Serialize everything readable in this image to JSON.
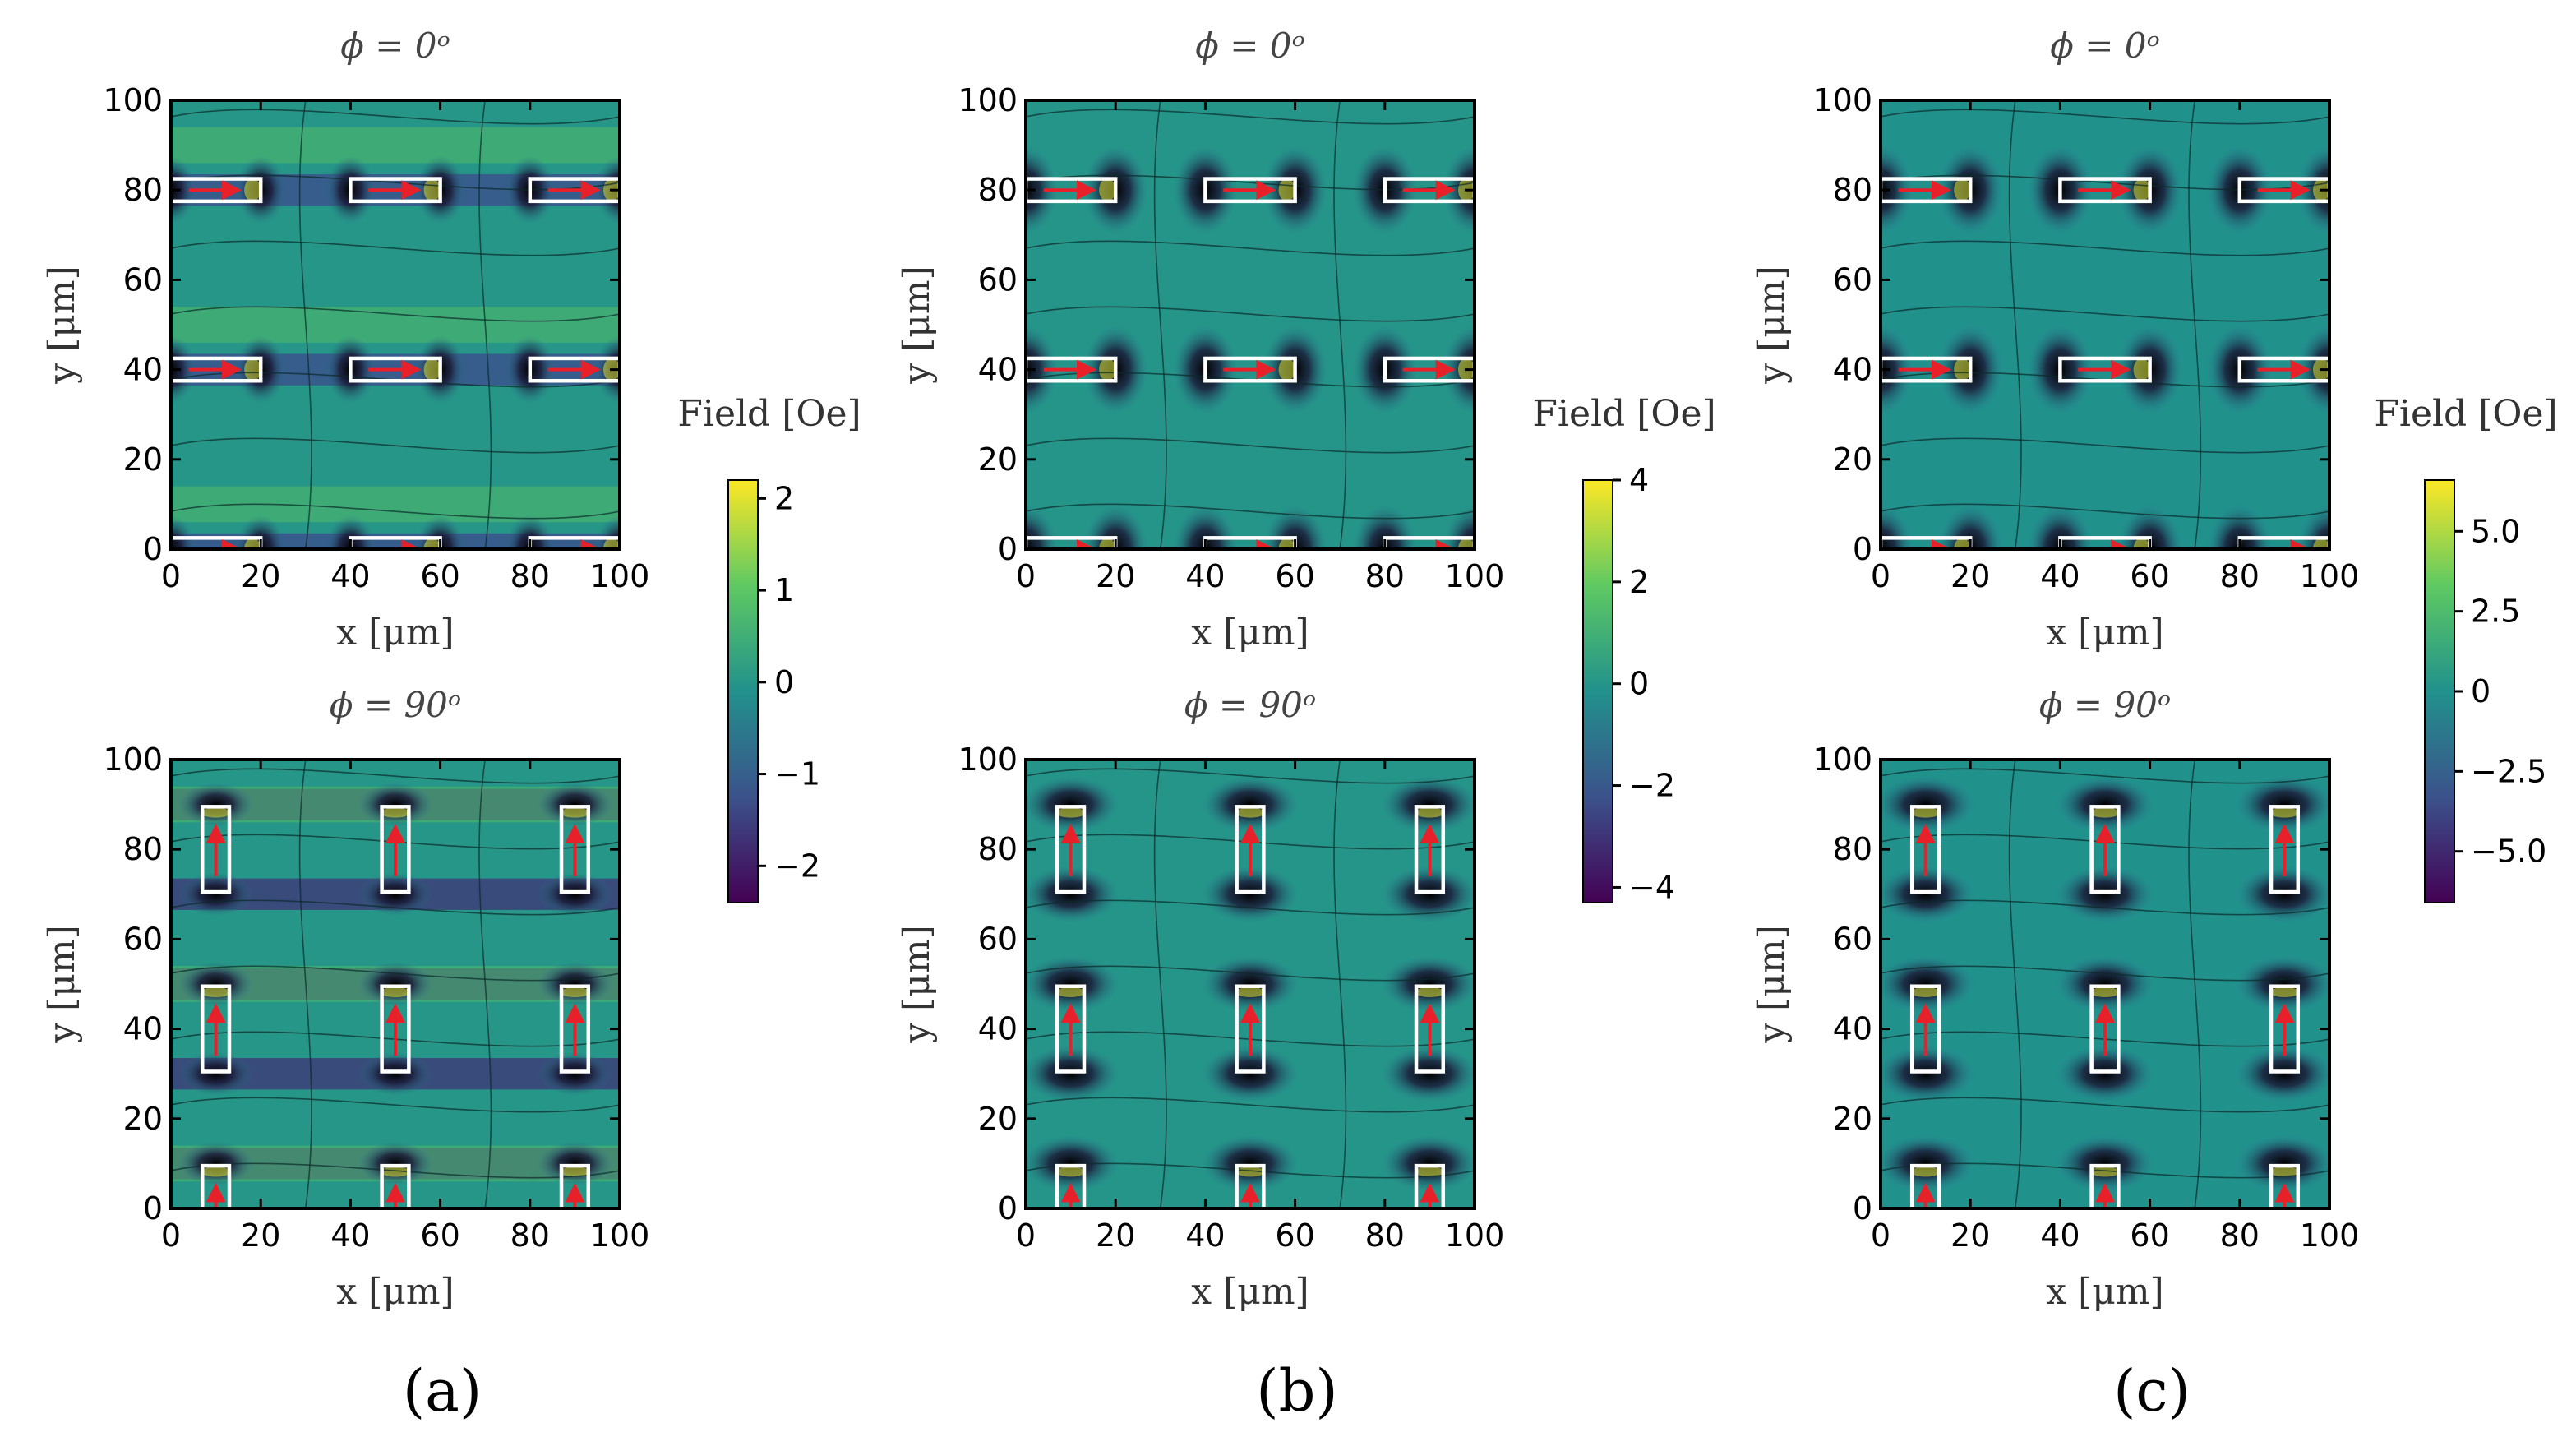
{
  "figure": {
    "panel_labels": [
      "(a)",
      "(b)",
      "(c)"
    ],
    "colorbar_label": "Field [Oe]",
    "colormap": [
      "#440154",
      "#3b528b",
      "#21918c",
      "#5ec962",
      "#fde725"
    ],
    "magnet_outline_color": "#ffffff",
    "magnetization_arrow_color": "#e8202a",
    "contour_color": "#0b2a2a"
  },
  "chart_data": [
    {
      "type": "heatmap",
      "panel": "a",
      "title": "ϕ = 0ᵒ",
      "xlabel": "x [μm]",
      "ylabel": "y [μm]",
      "xlim": [
        0,
        100
      ],
      "ylim": [
        0,
        100
      ],
      "xticks": [
        "0",
        "20",
        "40",
        "60",
        "80",
        "100"
      ],
      "yticks": [
        "0",
        "20",
        "40",
        "60",
        "80",
        "100"
      ],
      "field_range": [
        -2.4,
        2.2
      ],
      "magnet_orientation": "horizontal",
      "magnets_x_centers": [
        10,
        50,
        90
      ],
      "magnets_y_centers": [
        0,
        40,
        80
      ],
      "magnet_length": 20,
      "magnet_width": 5
    },
    {
      "type": "heatmap",
      "panel": "a",
      "title": "ϕ = 90ᵒ",
      "xlabel": "x [μm]",
      "ylabel": "y [μm]",
      "xlim": [
        0,
        100
      ],
      "ylim": [
        0,
        100
      ],
      "xticks": [
        "0",
        "20",
        "40",
        "60",
        "80",
        "100"
      ],
      "yticks": [
        "0",
        "20",
        "40",
        "60",
        "80",
        "100"
      ],
      "field_range": [
        -2.4,
        2.2
      ],
      "magnet_orientation": "vertical",
      "magnets_x_centers": [
        10,
        50,
        90
      ],
      "magnets_y_centers": [
        0,
        40,
        80
      ],
      "magnet_length": 20,
      "magnet_width": 5
    },
    {
      "type": "heatmap",
      "panel": "b",
      "title": "ϕ = 0ᵒ",
      "xlabel": "x [μm]",
      "ylabel": "y [μm]",
      "xlim": [
        0,
        100
      ],
      "ylim": [
        0,
        100
      ],
      "xticks": [
        "0",
        "20",
        "40",
        "60",
        "80",
        "100"
      ],
      "yticks": [
        "0",
        "20",
        "40",
        "60",
        "80",
        "100"
      ],
      "field_range": [
        -4.3,
        4.0
      ],
      "magnet_orientation": "horizontal",
      "magnets_x_centers": [
        10,
        50,
        90
      ],
      "magnets_y_centers": [
        0,
        40,
        80
      ],
      "magnet_length": 20,
      "magnet_width": 5
    },
    {
      "type": "heatmap",
      "panel": "b",
      "title": "ϕ = 90ᵒ",
      "xlabel": "x [μm]",
      "ylabel": "y [μm]",
      "xlim": [
        0,
        100
      ],
      "ylim": [
        0,
        100
      ],
      "xticks": [
        "0",
        "20",
        "40",
        "60",
        "80",
        "100"
      ],
      "yticks": [
        "0",
        "20",
        "40",
        "60",
        "80",
        "100"
      ],
      "field_range": [
        -4.3,
        4.0
      ],
      "magnet_orientation": "vertical",
      "magnets_x_centers": [
        10,
        50,
        90
      ],
      "magnets_y_centers": [
        0,
        40,
        80
      ],
      "magnet_length": 20,
      "magnet_width": 5
    },
    {
      "type": "heatmap",
      "panel": "c",
      "title": "ϕ = 0ᵒ",
      "xlabel": "x [μm]",
      "ylabel": "y [μm]",
      "xlim": [
        0,
        100
      ],
      "ylim": [
        0,
        100
      ],
      "xticks": [
        "0",
        "20",
        "40",
        "60",
        "80",
        "100"
      ],
      "yticks": [
        "0",
        "20",
        "40",
        "60",
        "80",
        "100"
      ],
      "field_range": [
        -6.6,
        6.6
      ],
      "magnet_orientation": "horizontal",
      "magnets_x_centers": [
        10,
        50,
        90
      ],
      "magnets_y_centers": [
        0,
        40,
        80
      ],
      "magnet_length": 20,
      "magnet_width": 5
    },
    {
      "type": "heatmap",
      "panel": "c",
      "title": "ϕ = 90ᵒ",
      "xlabel": "x [μm]",
      "ylabel": "y [μm]",
      "xlim": [
        0,
        100
      ],
      "ylim": [
        0,
        100
      ],
      "xticks": [
        "0",
        "20",
        "40",
        "60",
        "80",
        "100"
      ],
      "yticks": [
        "0",
        "20",
        "40",
        "60",
        "80",
        "100"
      ],
      "field_range": [
        -6.6,
        6.6
      ],
      "magnet_orientation": "vertical",
      "magnets_x_centers": [
        10,
        50,
        90
      ],
      "magnets_y_centers": [
        0,
        40,
        80
      ],
      "magnet_length": 20,
      "magnet_width": 5
    }
  ],
  "colorbars": [
    {
      "panel": "a",
      "label": "Field [Oe]",
      "vmin": -2.4,
      "vmax": 2.2,
      "ticks": [
        {
          "value": 2,
          "label": "2"
        },
        {
          "value": 1,
          "label": "1"
        },
        {
          "value": 0,
          "label": "0"
        },
        {
          "value": -1,
          "label": "−1"
        },
        {
          "value": -2,
          "label": "−2"
        }
      ]
    },
    {
      "panel": "b",
      "label": "Field [Oe]",
      "vmin": -4.3,
      "vmax": 4.0,
      "ticks": [
        {
          "value": 4,
          "label": "4"
        },
        {
          "value": 2,
          "label": "2"
        },
        {
          "value": 0,
          "label": "0"
        },
        {
          "value": -2,
          "label": "−2"
        },
        {
          "value": -4,
          "label": "−4"
        }
      ]
    },
    {
      "panel": "c",
      "label": "Field [Oe]",
      "vmin": -6.6,
      "vmax": 6.6,
      "ticks": [
        {
          "value": 5,
          "label": "5.0"
        },
        {
          "value": 2.5,
          "label": "2.5"
        },
        {
          "value": 0,
          "label": "0"
        },
        {
          "value": -2.5,
          "label": "−2.5"
        },
        {
          "value": -5,
          "label": "−5.0"
        }
      ]
    }
  ]
}
